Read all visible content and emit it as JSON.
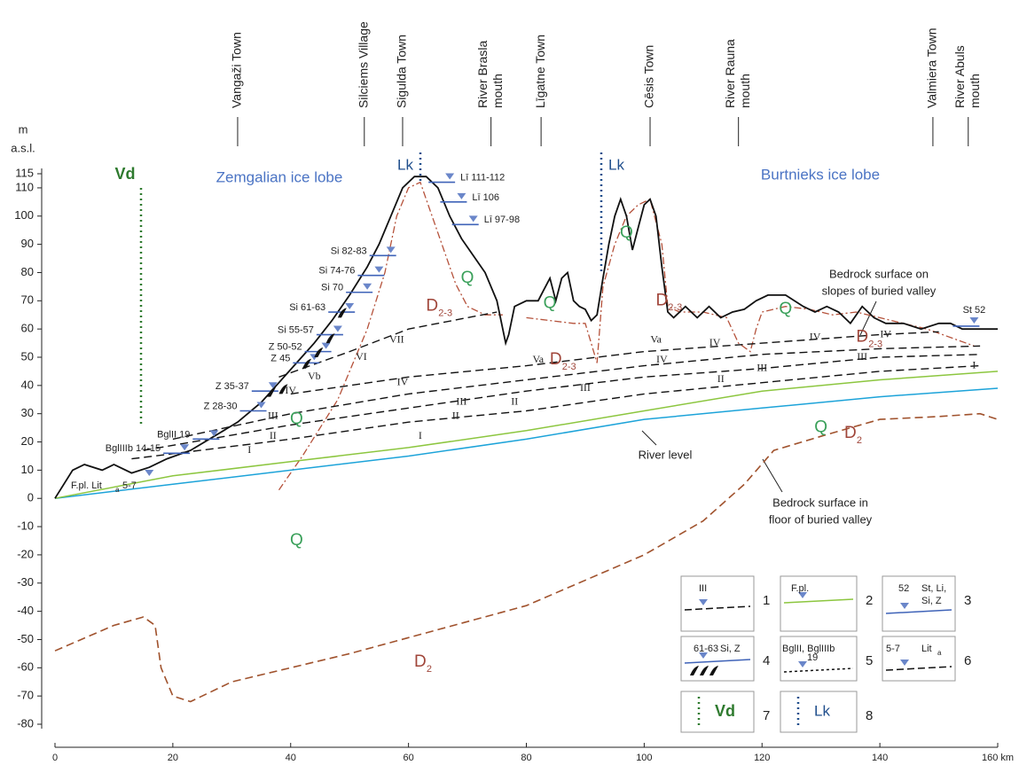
{
  "axis": {
    "unit_top": "m",
    "unit_bottom": "a.s.l.",
    "ylim": [
      -80,
      115
    ],
    "yticks": [
      115,
      110,
      100,
      90,
      80,
      70,
      60,
      50,
      40,
      30,
      20,
      10,
      0,
      -10,
      -20,
      -30,
      -40,
      -50,
      -60,
      -70,
      -80
    ],
    "xlim": [
      0,
      160
    ],
    "xticks": [
      0,
      20,
      40,
      60,
      80,
      100,
      120,
      140,
      {
        "value": 160,
        "label": "160 km"
      }
    ]
  },
  "places": [
    {
      "lines": [
        "Vangaži Town"
      ],
      "x": 31
    },
    {
      "lines": [
        "Silciems Village"
      ],
      "x": 52.5
    },
    {
      "lines": [
        "Sigulda Town"
      ],
      "x": 59
    },
    {
      "lines": [
        "River Brasla",
        "mouth"
      ],
      "x": 74
    },
    {
      "lines": [
        "Līgatne Town"
      ],
      "x": 82.5
    },
    {
      "lines": [
        "Cēsis Town"
      ],
      "x": 101
    },
    {
      "lines": [
        "River Rauna",
        "mouth"
      ],
      "x": 116
    },
    {
      "lines": [
        "Valmiera Town"
      ],
      "x": 149
    },
    {
      "lines": [
        "River Abuls",
        "mouth"
      ],
      "x": 155
    }
  ],
  "labels": {
    "vd": "Vd",
    "zemgalian": "Zemgalian ice lobe",
    "lk_1": "Lk",
    "lk_2": "Lk",
    "burtnieks": "Burtnieks ice lobe",
    "bedrock_slopes": [
      "Bedrock surface on",
      "slopes of buried valley"
    ],
    "river_level": "River level",
    "bedrock_floor": [
      "Bedrock surface in",
      "floor of buried valley"
    ]
  },
  "units": [
    {
      "main": "Q"
    },
    {
      "main": "Q"
    },
    {
      "main": "Q"
    },
    {
      "main": "Q"
    },
    {
      "main": "Q"
    },
    {
      "main": "Q"
    },
    {
      "main": "Q"
    },
    {
      "main": "D",
      "sub": "2-3"
    },
    {
      "main": "D",
      "sub": "2-3"
    },
    {
      "main": "D",
      "sub": "2-3"
    },
    {
      "main": "D",
      "sub": "2-3"
    },
    {
      "main": "D",
      "sub": "2"
    },
    {
      "main": "D",
      "sub": "2"
    }
  ],
  "terrace_labels": [
    "I",
    "II",
    "III",
    "IV",
    "Vb",
    "VI",
    "VII",
    "I",
    "II",
    "III",
    "IV",
    "Va",
    "II",
    "III",
    "IV",
    "Va",
    "IV",
    "II",
    "III",
    "IV",
    "I",
    "III",
    "IV"
  ],
  "markers": [
    {
      "label": "Lī 111-112",
      "x": 67,
      "y": 112
    },
    {
      "label": "Lī 106",
      "x": 69,
      "y": 105
    },
    {
      "label": "Lī 97-98",
      "x": 71,
      "y": 97
    },
    {
      "label": "Si 82-83",
      "x": 57,
      "y": 86
    },
    {
      "label": "Si 74-76",
      "x": 55,
      "y": 79
    },
    {
      "label": "Si 70",
      "x": 53,
      "y": 73
    },
    {
      "label": "Si 61-63",
      "x": 50,
      "y": 66
    },
    {
      "label": "Si 55-57",
      "x": 48,
      "y": 58
    },
    {
      "label": "Z 50-52",
      "x": 46,
      "y": 52
    },
    {
      "label": "Z 45",
      "x": 44,
      "y": 48
    },
    {
      "label": "Z 35-37",
      "x": 37,
      "y": 38
    },
    {
      "label": "Z 28-30",
      "x": 35,
      "y": 31
    },
    {
      "label": "BglII 19",
      "x": 27,
      "y": 21
    },
    {
      "label": "BglIIIb 14-15",
      "x": 22,
      "y": 16
    },
    {
      "label": "St 52",
      "x": 156,
      "y": 61
    }
  ],
  "floodplain_label": {
    "text": "F.pl. Lit",
    "sub": "a",
    "text2": "5-7",
    "x": 16,
    "y": 7
  },
  "profiles": {
    "surface": {
      "x": [
        0,
        3,
        5,
        8,
        10,
        13,
        16,
        19,
        23,
        27,
        31,
        35,
        38,
        41,
        44,
        47,
        50,
        53,
        55,
        57,
        59,
        61,
        63,
        65,
        67,
        69,
        71,
        73,
        75,
        76,
        76.5,
        77,
        78,
        80,
        82,
        83,
        84,
        85,
        86,
        87,
        88,
        89,
        90,
        91,
        92,
        93,
        94,
        95,
        96,
        97,
        98,
        99,
        100,
        101,
        102,
        103,
        104,
        105,
        107,
        109,
        111,
        113,
        115,
        117,
        119,
        121,
        124,
        127,
        129,
        131,
        133,
        135,
        137,
        139,
        141,
        144,
        147,
        150,
        152,
        154,
        160
      ],
      "y": [
        0,
        10,
        12,
        10,
        12,
        9,
        11,
        14,
        17,
        22,
        27,
        34,
        41,
        48,
        55,
        63,
        72,
        82,
        90,
        100,
        110,
        114,
        114,
        110,
        100,
        92,
        86,
        80,
        70,
        60,
        55,
        58,
        68,
        70,
        70,
        74,
        78,
        70,
        78,
        80,
        70,
        68,
        67,
        63,
        65,
        78,
        90,
        100,
        106,
        100,
        88,
        96,
        104,
        106,
        100,
        82,
        66,
        64,
        68,
        64,
        68,
        64,
        66,
        67,
        70,
        72,
        72,
        68,
        66,
        68,
        66,
        62,
        68,
        64,
        62,
        62,
        60,
        62,
        62,
        60,
        60
      ]
    },
    "floodplain": {
      "x": [
        0,
        20,
        40,
        60,
        80,
        100,
        120,
        140,
        160
      ],
      "y": [
        0,
        8,
        13,
        18,
        24,
        31,
        38,
        42,
        45
      ]
    },
    "river": {
      "x": [
        0,
        20,
        40,
        60,
        80,
        100,
        120,
        140,
        160
      ],
      "y": [
        0,
        5,
        10,
        15,
        21,
        28,
        32,
        36,
        39
      ]
    },
    "bedrock_floor": {
      "x": [
        0,
        10,
        15,
        17,
        18,
        20,
        23,
        30,
        50,
        80,
        100,
        110,
        117,
        122,
        130,
        140,
        150,
        157,
        160
      ],
      "y": [
        -54,
        -45,
        -42,
        -45,
        -60,
        -70,
        -72,
        -65,
        -55,
        -38,
        -20,
        -8,
        5,
        17,
        22,
        28,
        29,
        30,
        28
      ]
    },
    "bedrock_slope": {
      "x": [
        38,
        42,
        48,
        53,
        56,
        58,
        60,
        62,
        64,
        66,
        68,
        70,
        73,
        76,
        null,
        80,
        84,
        88,
        90,
        91,
        92,
        93,
        95,
        97,
        99,
        101,
        103,
        104,
        106,
        110,
        114,
        116,
        118,
        119,
        120,
        124,
        128,
        132,
        136,
        140,
        148,
        156
      ],
      "y": [
        3,
        15,
        35,
        60,
        80,
        100,
        110,
        112,
        100,
        88,
        76,
        68,
        65,
        65,
        null,
        64,
        63,
        62,
        62,
        55,
        48,
        75,
        90,
        100,
        104,
        106,
        90,
        68,
        66,
        66,
        64,
        55,
        52,
        60,
        66,
        68,
        67,
        65,
        66,
        64,
        60,
        54
      ]
    },
    "terraces": [
      {
        "x": [
          13,
          40,
          60,
          80,
          100,
          120,
          140,
          157
        ],
        "y": [
          14,
          21,
          27,
          31,
          37,
          41,
          45,
          47
        ]
      },
      {
        "x": [
          15,
          40,
          60,
          80,
          100,
          120,
          140,
          157
        ],
        "y": [
          17,
          26,
          32,
          38,
          43,
          46,
          50,
          51
        ]
      },
      {
        "x": [
          20,
          40,
          60,
          80,
          100,
          120,
          140,
          157
        ],
        "y": [
          21,
          30,
          37,
          42,
          47,
          51,
          53,
          54
        ]
      },
      {
        "x": [
          40,
          60,
          80,
          100,
          120,
          140,
          150
        ],
        "y": [
          37,
          43,
          47,
          52,
          55,
          58,
          59
        ]
      },
      {
        "x": [
          38,
          50,
          60,
          75
        ],
        "y": [
          43,
          52,
          60,
          66
        ]
      }
    ]
  },
  "legend": [
    {
      "symbol": "III",
      "number": "1"
    },
    {
      "symbol": "F.pl.",
      "number": "2"
    },
    {
      "symbol": "52",
      "lines": [
        "St, Li,",
        "Si, Z"
      ],
      "number": "3"
    },
    {
      "symbol": "61-63",
      "lines": [
        "Si, Z"
      ],
      "number": "4"
    },
    {
      "symbol": "BglII, BglIIIb",
      "lines": [
        "19"
      ],
      "number": "5"
    },
    {
      "symbol": "5-7",
      "lines": [
        "Lit"
      ],
      "sub": "a",
      "number": "6"
    },
    {
      "symbol": "Vd",
      "number": "7"
    },
    {
      "symbol": "Lk",
      "number": "8"
    }
  ]
}
